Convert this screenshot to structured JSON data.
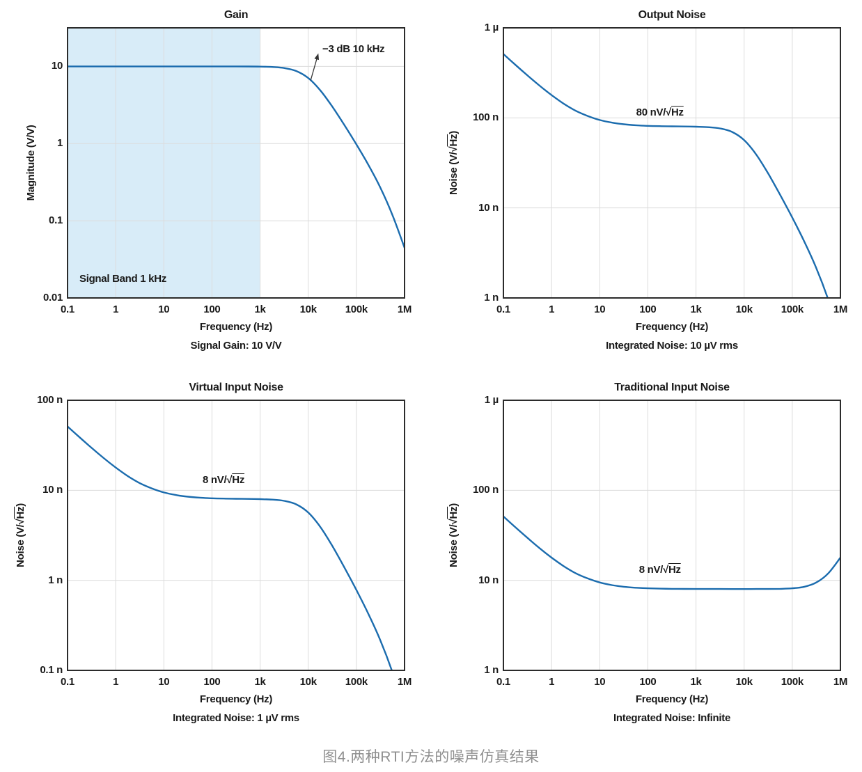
{
  "caption": {
    "text": "图4.两种RTI方法的噪声仿真结果",
    "color": "#8f8f8f"
  },
  "style": {
    "line_color": "#1b6cae",
    "band_color": "#d8ecf8",
    "grid_color": "#dcdcdc",
    "axis_color": "#2b2b2b",
    "text_color": "#1a1a1a",
    "background": "#ffffff"
  },
  "chart_data": [
    {
      "type": "line",
      "title": "Gain",
      "xlabel": "Frequency (Hz)",
      "footer": "Signal Gain: 10 V/V",
      "ylabel": {
        "pre": "Magnitude (V/V)",
        "over": "",
        "post": ""
      },
      "x_range_log": [
        -1,
        6
      ],
      "y_range_log": [
        -2,
        1.5
      ],
      "grid": true,
      "xticks": [
        {
          "log": -1,
          "label": "0.1"
        },
        {
          "log": 0,
          "label": "1"
        },
        {
          "log": 1,
          "label": "10"
        },
        {
          "log": 2,
          "label": "100"
        },
        {
          "log": 3,
          "label": "1k"
        },
        {
          "log": 4,
          "label": "10k"
        },
        {
          "log": 5,
          "label": "100k"
        },
        {
          "log": 6,
          "label": "1M"
        }
      ],
      "yticks": [
        {
          "log": 1,
          "label": "10"
        },
        {
          "log": 0,
          "label": "1"
        },
        {
          "log": -1,
          "label": "0.1"
        },
        {
          "log": -2,
          "label": "0.01"
        }
      ],
      "band": {
        "from_log": -1,
        "to_log": 3,
        "label": "Signal Band 1 kHz"
      },
      "annotation": {
        "pre": "−3 dB 10 kHz",
        "over": "",
        "post": "",
        "log_x": 4.94,
        "log_y": 1.22,
        "arrow": {
          "from_log": [
            4.05,
            0.82
          ],
          "to_log": [
            4.21,
            1.17
          ]
        }
      },
      "series": {
        "name": "Gain",
        "unit": "V/V",
        "x_log": [
          -1,
          -0.75,
          -0.5,
          -0.25,
          0,
          0.25,
          0.5,
          0.75,
          1,
          1.25,
          1.5,
          1.75,
          2,
          2.25,
          2.5,
          2.75,
          3,
          3.25,
          3.5,
          3.75,
          4,
          4.25,
          4.5,
          4.75,
          5,
          5.25,
          5.5,
          5.75,
          6
        ],
        "y": [
          10,
          10,
          10,
          10,
          10,
          10,
          10,
          10,
          10,
          10,
          10,
          10,
          10,
          10,
          10,
          9.99,
          9.95,
          9.84,
          9.53,
          8.72,
          7.07,
          4.9,
          3.01,
          1.74,
          0.976,
          0.529,
          0.267,
          0.118,
          0.0447
        ]
      }
    },
    {
      "type": "line",
      "title": "Output Noise",
      "xlabel": "Frequency (Hz)",
      "footer": "Integrated Noise: 10 µV rms",
      "ylabel": {
        "pre": "Noise (V/√",
        "over": "Hz",
        "post": ")"
      },
      "x_range_log": [
        -1,
        6
      ],
      "y_range_log": [
        0,
        3
      ],
      "grid": true,
      "xticks": [
        {
          "log": -1,
          "label": "0.1"
        },
        {
          "log": 0,
          "label": "1"
        },
        {
          "log": 1,
          "label": "10"
        },
        {
          "log": 2,
          "label": "100"
        },
        {
          "log": 3,
          "label": "1k"
        },
        {
          "log": 4,
          "label": "10k"
        },
        {
          "log": 5,
          "label": "100k"
        },
        {
          "log": 6,
          "label": "1M"
        }
      ],
      "yticks": [
        {
          "log": 3,
          "label": "1 µ"
        },
        {
          "log": 2,
          "label": "100 n"
        },
        {
          "log": 1,
          "label": "10 n"
        },
        {
          "log": 0,
          "label": "1 n"
        }
      ],
      "band": null,
      "annotation": {
        "pre": "80 nV/√",
        "over": "Hz",
        "post": "",
        "log_x": 2.25,
        "log_y": 2.06,
        "arrow": null
      },
      "series": {
        "name": "Output Noise",
        "unit": "nV/√Hz",
        "x_log": [
          -1,
          -0.75,
          -0.5,
          -0.25,
          0,
          0.25,
          0.5,
          0.75,
          1,
          1.25,
          1.5,
          1.75,
          2,
          2.25,
          2.5,
          2.75,
          3,
          3.25,
          3.5,
          3.75,
          4,
          4.25,
          4.5,
          4.75,
          5,
          5.25,
          5.5,
          5.75,
          6
        ],
        "y": [
          512,
          388,
          296,
          228,
          179,
          144,
          120,
          105,
          94.7,
          88.6,
          84.9,
          82.8,
          81.6,
          80.9,
          80.5,
          80.3,
          79.8,
          78.8,
          76.3,
          69.8,
          56.6,
          39.2,
          24.1,
          13.9,
          7.81,
          4.23,
          2.14,
          0.95,
          0.36
        ]
      }
    },
    {
      "type": "line",
      "title": "Virtual Input Noise",
      "xlabel": "Frequency (Hz)",
      "footer": "Integrated Noise: 1 µV rms",
      "ylabel": {
        "pre": "Noise (V/√",
        "over": "Hz",
        "post": ")"
      },
      "x_range_log": [
        -1,
        6
      ],
      "y_range_log": [
        -1,
        2
      ],
      "grid": true,
      "xticks": [
        {
          "log": -1,
          "label": "0.1"
        },
        {
          "log": 0,
          "label": "1"
        },
        {
          "log": 1,
          "label": "10"
        },
        {
          "log": 2,
          "label": "100"
        },
        {
          "log": 3,
          "label": "1k"
        },
        {
          "log": 4,
          "label": "10k"
        },
        {
          "log": 5,
          "label": "100k"
        },
        {
          "log": 6,
          "label": "1M"
        }
      ],
      "yticks": [
        {
          "log": 2,
          "label": "100 n"
        },
        {
          "log": 1,
          "label": "10 n"
        },
        {
          "log": 0,
          "label": "1 n"
        },
        {
          "log": -1,
          "label": "0.1 n"
        }
      ],
      "band": null,
      "annotation": {
        "pre": "8 nV/√",
        "over": "Hz",
        "post": "",
        "log_x": 2.24,
        "log_y": 1.11,
        "arrow": null
      },
      "series": {
        "name": "Virtual Input Noise",
        "unit": "nV/√Hz",
        "x_log": [
          -1,
          -0.75,
          -0.5,
          -0.25,
          0,
          0.25,
          0.5,
          0.75,
          1,
          1.25,
          1.5,
          1.75,
          2,
          2.25,
          2.5,
          2.75,
          3,
          3.25,
          3.5,
          3.75,
          4,
          4.25,
          4.5,
          4.75,
          5,
          5.25,
          5.5,
          5.75,
          6
        ],
        "y": [
          51.2,
          38.8,
          29.6,
          22.8,
          17.9,
          14.4,
          12,
          10.5,
          9.47,
          8.86,
          8.49,
          8.28,
          8.16,
          8.09,
          8.05,
          8.03,
          7.98,
          7.88,
          7.63,
          6.98,
          5.66,
          3.92,
          2.41,
          1.39,
          0.781,
          0.423,
          0.214,
          0.095,
          0.036
        ]
      }
    },
    {
      "type": "line",
      "title": "Traditional Input Noise",
      "xlabel": "Frequency (Hz)",
      "footer": "Integrated Noise: Infinite",
      "ylabel": {
        "pre": "Noise (V/√",
        "over": "Hz",
        "post": ")"
      },
      "x_range_log": [
        -1,
        6
      ],
      "y_range_log": [
        0,
        3
      ],
      "grid": true,
      "xticks": [
        {
          "log": -1,
          "label": "0.1"
        },
        {
          "log": 0,
          "label": "1"
        },
        {
          "log": 1,
          "label": "10"
        },
        {
          "log": 2,
          "label": "100"
        },
        {
          "log": 3,
          "label": "1k"
        },
        {
          "log": 4,
          "label": "10k"
        },
        {
          "log": 5,
          "label": "100k"
        },
        {
          "log": 6,
          "label": "1M"
        }
      ],
      "yticks": [
        {
          "log": 3,
          "label": "1 µ"
        },
        {
          "log": 2,
          "label": "100 n"
        },
        {
          "log": 1,
          "label": "10 n"
        },
        {
          "log": 0,
          "label": "1 n"
        }
      ],
      "band": null,
      "annotation": {
        "pre": "8 nV/√",
        "over": "Hz",
        "post": "",
        "log_x": 2.25,
        "log_y": 1.11,
        "arrow": null
      },
      "series": {
        "name": "Traditional Input Noise",
        "unit": "nV/√Hz",
        "x_log": [
          -1,
          -0.75,
          -0.5,
          -0.25,
          0,
          0.25,
          0.5,
          0.75,
          1,
          1.25,
          1.5,
          1.75,
          2,
          2.25,
          2.5,
          2.75,
          3,
          3.25,
          3.5,
          3.75,
          4,
          4.25,
          4.5,
          4.75,
          5,
          5.25,
          5.5,
          5.75,
          6
        ],
        "y": [
          51.2,
          38.8,
          29.6,
          22.8,
          17.9,
          14.4,
          12,
          10.5,
          9.47,
          8.86,
          8.49,
          8.28,
          8.16,
          8.09,
          8.05,
          8.03,
          8.02,
          8.01,
          8.01,
          8,
          8,
          8.01,
          8.02,
          8.05,
          8.16,
          8.49,
          9.47,
          12,
          17.9
        ]
      }
    }
  ]
}
